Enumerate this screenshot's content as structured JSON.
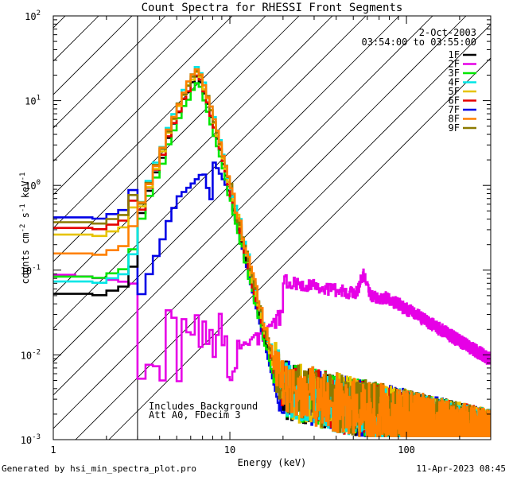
{
  "chart_data": {
    "type": "line",
    "title": "Count Spectra for RHESSI Front Segments",
    "xlabel": "Energy (keV)",
    "ylabel_parts": [
      "counts cm",
      "-2",
      " s",
      "-1",
      " keV",
      "-1"
    ],
    "xscale": "log",
    "yscale": "log",
    "xlim": [
      1,
      300
    ],
    "ylim": [
      0.001,
      100
    ],
    "x_ticks": [
      {
        "v": 1,
        "label": "1"
      },
      {
        "v": 10,
        "label": "10"
      },
      {
        "v": 100,
        "label": "100"
      }
    ],
    "y_ticks": [
      {
        "v": 0.001,
        "base": "10",
        "exp": "-3"
      },
      {
        "v": 0.01,
        "base": "10",
        "exp": "-2"
      },
      {
        "v": 0.1,
        "base": "10",
        "exp": "-1"
      },
      {
        "v": 1,
        "base": "10",
        "exp": "0"
      },
      {
        "v": 10,
        "base": "10",
        "exp": "1"
      },
      {
        "v": 100,
        "base": "10",
        "exp": "2"
      }
    ],
    "attenuator_shading_max_kev": 3,
    "date": "2-Oct-2003",
    "time_range": "03:54:00 to 03:55:00",
    "annotations": [
      "Includes Background",
      "Att A0, FDecim 3"
    ],
    "series": [
      {
        "name": "1F",
        "color": "#000000",
        "peak": 19,
        "low": 0.05
      },
      {
        "name": "2F",
        "color": "#e600e6",
        "peak": 0.075,
        "low": 0.09
      },
      {
        "name": "3F",
        "color": "#00e600",
        "peak": 16,
        "low": 0.08
      },
      {
        "name": "4F",
        "color": "#00e6e6",
        "peak": 25,
        "low": 0.07
      },
      {
        "name": "5F",
        "color": "#e6c300",
        "peak": 22,
        "low": 0.25
      },
      {
        "name": "6F",
        "color": "#e60000",
        "peak": 20,
        "low": 0.3
      },
      {
        "name": "7F",
        "color": "#0000e6",
        "peak": 2.0,
        "low": 0.4
      },
      {
        "name": "8F",
        "color": "#ff8000",
        "peak": 24,
        "low": 0.15
      },
      {
        "name": "9F",
        "color": "#8c7a00",
        "peak": 23,
        "low": 0.35
      }
    ]
  },
  "footer": {
    "left": "Generated by hsi_min_spectra_plot.pro",
    "right": "11-Apr-2023 08:45"
  }
}
